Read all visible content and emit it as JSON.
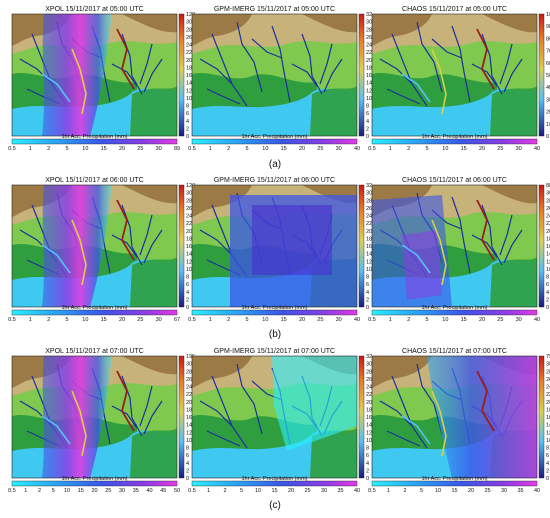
{
  "figure": {
    "colors": {
      "sea": "#3fc8f0",
      "lowland": "#2f9e3f",
      "plain": "#7fc94f",
      "hill": "#c7b37a",
      "mountain": "#9c7a45",
      "river": "#1c2f9e",
      "river_discharge_low": "#55c0f5",
      "river_discharge_mid": "#d8d04a",
      "river_discharge_high": "#9b1c1c",
      "precip_low": "#2cf0ff",
      "precip_mid": "#3b55e8",
      "precip_high": "#e23be3",
      "discharge_bar_low": "#1a1a80",
      "discharge_bar_high": "#cc1818"
    },
    "discharge_label": "Discharge (m³/s)",
    "precip_label": "1hr Acc. Precipitation (mm)",
    "precip_ticks_base": [
      "0.5",
      "1",
      "2",
      "5",
      "10",
      "15",
      "20",
      "25",
      "30"
    ]
  },
  "chart_data": [
    {
      "type": "heatmap",
      "row": "(a)",
      "source": "XPOL",
      "time": "15/11/2017 at 05:00 UTC",
      "title": "XPOL   15/11/2017 at 05:00 UTC",
      "precip_ticks": [
        "0.5",
        "1",
        "2",
        "5",
        "10",
        "15",
        "20",
        "25",
        "30",
        "89"
      ],
      "discharge_ticks": [
        "0",
        "2",
        "4",
        "6",
        "8",
        "10",
        "12",
        "14",
        "16",
        "18",
        "20",
        "22",
        "24",
        "26",
        "28",
        "30",
        "120"
      ],
      "discharge_range": [
        0,
        120
      ],
      "precip_range": [
        0.5,
        89
      ],
      "precip_field": "north-south band, western half",
      "precip_peak": "high"
    },
    {
      "type": "heatmap",
      "row": "(a)",
      "source": "GPM-IMERG",
      "time": "15/11/2017 at 05:00 UTC",
      "title": "GPM-IMERG   15/11/2017 at 05:00 UTC",
      "precip_ticks": [
        "0.5",
        "1",
        "2",
        "5",
        "10",
        "15",
        "20",
        "25",
        "30",
        "40"
      ],
      "discharge_ticks": [
        "0",
        "2",
        "4",
        "6",
        "8",
        "10",
        "12",
        "14",
        "16",
        "18",
        "20",
        "22",
        "24",
        "26",
        "28",
        "30",
        "32"
      ],
      "discharge_range": [
        0,
        32
      ],
      "precip_range": [
        0.5,
        40
      ],
      "precip_field": "none",
      "precip_peak": "none"
    },
    {
      "type": "heatmap",
      "row": "(a)",
      "source": "CHAOS",
      "time": "15/11/2017 at 05:00 UTC",
      "title": "CHAOS   15/11/2017 at 05:00 UTC",
      "precip_ticks": [
        "0.5",
        "1",
        "2",
        "5",
        "10",
        "15",
        "20",
        "25",
        "30",
        "40"
      ],
      "discharge_ticks": [
        "0",
        "10",
        "20",
        "30",
        "40",
        "50",
        "60",
        "70",
        "80",
        "90",
        "100"
      ],
      "discharge_range": [
        0,
        100
      ],
      "precip_range": [
        0.5,
        40
      ],
      "precip_field": "none",
      "precip_peak": "none"
    },
    {
      "type": "heatmap",
      "row": "(b)",
      "source": "XPOL",
      "time": "15/11/2017 at 06:00 UTC",
      "title": "XPOL   15/11/2017 at 06:00 UTC",
      "precip_ticks": [
        "0.5",
        "1",
        "2",
        "5",
        "10",
        "15",
        "20",
        "25",
        "30",
        "67"
      ],
      "discharge_ticks": [
        "0",
        "2",
        "4",
        "6",
        "8",
        "10",
        "12",
        "14",
        "16",
        "18",
        "20",
        "22",
        "24",
        "26",
        "28",
        "30",
        "120"
      ],
      "discharge_range": [
        0,
        120
      ],
      "precip_range": [
        0.5,
        67
      ],
      "precip_field": "north-south band, western half",
      "precip_peak": "high"
    },
    {
      "type": "heatmap",
      "row": "(b)",
      "source": "GPM-IMERG",
      "time": "15/11/2017 at 06:00 UTC",
      "title": "GPM-IMERG   15/11/2017 at 06:00 UTC",
      "precip_ticks": [
        "0.5",
        "1",
        "2",
        "5",
        "10",
        "15",
        "20",
        "25",
        "30",
        "40"
      ],
      "discharge_ticks": [
        "0",
        "2",
        "4",
        "6",
        "8",
        "10",
        "12",
        "14",
        "16",
        "18",
        "20",
        "22",
        "24",
        "26",
        "28",
        "30",
        "32"
      ],
      "discharge_range": [
        0,
        32
      ],
      "precip_range": [
        0.5,
        40
      ],
      "precip_field": "large blocky area, center",
      "precip_peak": "moderate"
    },
    {
      "type": "heatmap",
      "row": "(b)",
      "source": "CHAOS",
      "time": "15/11/2017 at 06:00 UTC",
      "title": "CHAOS   15/11/2017 at 06:00 UTC",
      "precip_ticks": [
        "0.5",
        "1",
        "2",
        "5",
        "10",
        "15",
        "20",
        "25",
        "30",
        "40"
      ],
      "discharge_ticks": [
        "0",
        "2",
        "4",
        "6",
        "8",
        "10",
        "12",
        "14",
        "16",
        "18",
        "20",
        "22",
        "24",
        "26",
        "28",
        "30",
        "88"
      ],
      "discharge_range": [
        0,
        88
      ],
      "precip_range": [
        0.5,
        40
      ],
      "precip_field": "diagonal band, southwest",
      "precip_peak": "moderate"
    },
    {
      "type": "heatmap",
      "row": "(c)",
      "source": "XPOL",
      "time": "15/11/2017 at 07:00 UTC",
      "title": "XPOL   15/11/2017 at 07:00 UTC",
      "precip_ticks": [
        "0.5",
        "1",
        "2",
        "5",
        "10",
        "15",
        "20",
        "25",
        "30",
        "35",
        "40",
        "45",
        "50"
      ],
      "discharge_ticks": [
        "0",
        "2",
        "4",
        "6",
        "8",
        "10",
        "12",
        "14",
        "16",
        "18",
        "20",
        "22",
        "24",
        "26",
        "28",
        "30",
        "195"
      ],
      "discharge_range": [
        0,
        195
      ],
      "precip_range": [
        0.5,
        50
      ],
      "precip_field": "north-south band, western half",
      "precip_peak": "high"
    },
    {
      "type": "heatmap",
      "row": "(c)",
      "source": "GPM-IMERG",
      "time": "15/11/2017 at 07:00 UTC",
      "title": "GPM-IMERG   15/11/2017 at 07:00 UTC",
      "precip_ticks": [
        "0.5",
        "1",
        "2",
        "5",
        "10",
        "15",
        "20",
        "25",
        "30",
        "35",
        "40"
      ],
      "discharge_ticks": [
        "0",
        "2",
        "4",
        "6",
        "8",
        "10",
        "12",
        "14",
        "16",
        "18",
        "20",
        "22",
        "24",
        "26",
        "28",
        "30",
        "32"
      ],
      "discharge_range": [
        0,
        32
      ],
      "precip_range": [
        0.5,
        40
      ],
      "precip_field": "northeast light area",
      "precip_peak": "low"
    },
    {
      "type": "heatmap",
      "row": "(c)",
      "source": "CHAOS",
      "time": "15/11/2017 at 07:00 UTC",
      "title": "CHAOS   15/11/2017 at 07:00 UTC",
      "precip_ticks": [
        "0.5",
        "1",
        "2",
        "5",
        "10",
        "15",
        "20",
        "25",
        "30",
        "35",
        "40"
      ],
      "discharge_ticks": [
        "0",
        "2",
        "4",
        "6",
        "8",
        "10",
        "12",
        "14",
        "16",
        "18",
        "20",
        "22",
        "24",
        "26",
        "28",
        "30",
        "79"
      ],
      "discharge_range": [
        0,
        79
      ],
      "precip_range": [
        0.5,
        40
      ],
      "precip_field": "eastern half",
      "precip_peak": "high"
    }
  ]
}
